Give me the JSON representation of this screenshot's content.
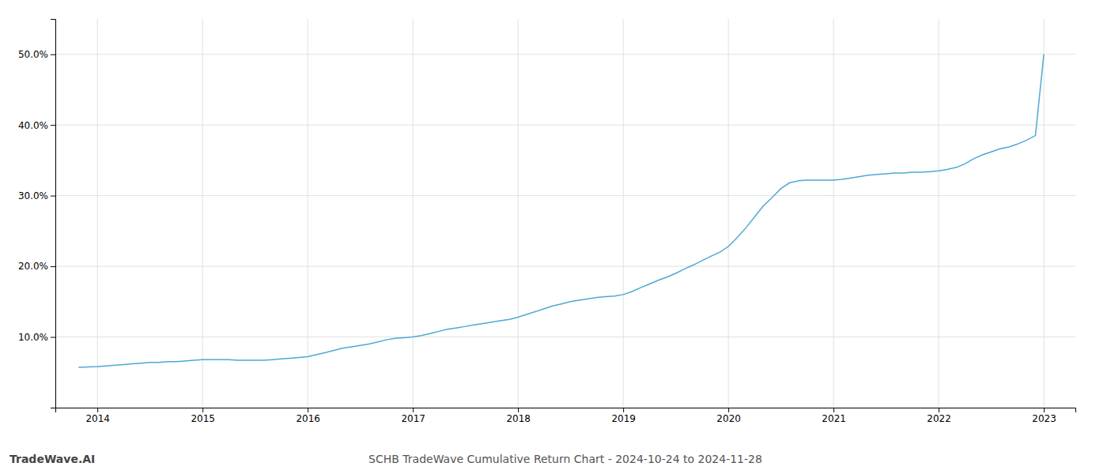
{
  "chart_data": {
    "type": "line",
    "title": "SCHB TradeWave Cumulative Return Chart - 2024-10-24 to 2024-11-28",
    "annotations": [
      "TradeWave.AI"
    ],
    "color": "#4fa8d5",
    "grid": true,
    "xlim": [
      2013.6,
      2023.3
    ],
    "xticks": [
      2014,
      2015,
      2016,
      2017,
      2018,
      2019,
      2020,
      2021,
      2022,
      2023
    ],
    "ylim": [
      0.0,
      0.55
    ],
    "yticks": [
      {
        "value": 0.1,
        "label": "10.0%"
      },
      {
        "value": 0.2,
        "label": "20.0%"
      },
      {
        "value": 0.3,
        "label": "30.0%"
      },
      {
        "value": 0.4,
        "label": "40.0%"
      },
      {
        "value": 0.5,
        "label": "50.0%"
      }
    ],
    "x": [
      2013.82,
      2014.0,
      2014.08,
      2014.17,
      2014.25,
      2014.33,
      2014.42,
      2014.5,
      2014.58,
      2014.67,
      2014.75,
      2014.83,
      2014.92,
      2015.0,
      2015.08,
      2015.17,
      2015.25,
      2015.33,
      2015.42,
      2015.5,
      2015.58,
      2015.67,
      2015.75,
      2015.83,
      2015.92,
      2016.0,
      2016.08,
      2016.17,
      2016.25,
      2016.33,
      2016.42,
      2016.5,
      2016.58,
      2016.67,
      2016.75,
      2016.83,
      2016.92,
      2017.0,
      2017.08,
      2017.17,
      2017.25,
      2017.33,
      2017.42,
      2017.5,
      2017.58,
      2017.67,
      2017.75,
      2017.83,
      2017.92,
      2018.0,
      2018.08,
      2018.17,
      2018.25,
      2018.33,
      2018.42,
      2018.5,
      2018.58,
      2018.67,
      2018.75,
      2018.83,
      2018.92,
      2019.0,
      2019.08,
      2019.17,
      2019.25,
      2019.33,
      2019.42,
      2019.5,
      2019.58,
      2019.67,
      2019.75,
      2019.83,
      2019.92,
      2020.0,
      2020.08,
      2020.17,
      2020.25,
      2020.33,
      2020.42,
      2020.5,
      2020.58,
      2020.67,
      2020.75,
      2020.83,
      2020.92,
      2021.0,
      2021.08,
      2021.17,
      2021.25,
      2021.33,
      2021.42,
      2021.5,
      2021.58,
      2021.67,
      2021.75,
      2021.83,
      2021.92,
      2022.0,
      2022.08,
      2022.17,
      2022.25,
      2022.33,
      2022.42,
      2022.5,
      2022.58,
      2022.67,
      2022.75,
      2022.83,
      2022.92,
      2023.0
    ],
    "values": [
      0.057,
      0.058,
      0.059,
      0.06,
      0.061,
      0.062,
      0.063,
      0.064,
      0.064,
      0.065,
      0.065,
      0.066,
      0.067,
      0.068,
      0.068,
      0.068,
      0.068,
      0.067,
      0.067,
      0.067,
      0.067,
      0.068,
      0.069,
      0.07,
      0.071,
      0.072,
      0.075,
      0.078,
      0.081,
      0.084,
      0.086,
      0.088,
      0.09,
      0.093,
      0.096,
      0.098,
      0.099,
      0.1,
      0.102,
      0.105,
      0.108,
      0.111,
      0.113,
      0.115,
      0.117,
      0.119,
      0.121,
      0.123,
      0.125,
      0.128,
      0.132,
      0.136,
      0.14,
      0.144,
      0.147,
      0.15,
      0.152,
      0.154,
      0.156,
      0.157,
      0.158,
      0.16,
      0.164,
      0.17,
      0.175,
      0.18,
      0.185,
      0.19,
      0.196,
      0.202,
      0.208,
      0.214,
      0.22,
      0.228,
      0.24,
      0.255,
      0.27,
      0.285,
      0.298,
      0.31,
      0.318,
      0.321,
      0.322,
      0.322,
      0.322,
      0.322,
      0.323,
      0.325,
      0.327,
      0.329,
      0.33,
      0.331,
      0.332,
      0.332,
      0.333,
      0.333,
      0.334,
      0.335,
      0.337,
      0.34,
      0.345,
      0.352,
      0.358,
      0.362,
      0.366,
      0.369,
      0.373,
      0.378,
      0.385,
      0.5
    ]
  }
}
